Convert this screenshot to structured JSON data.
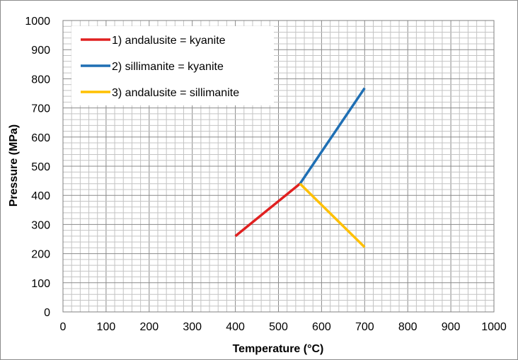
{
  "chart_data": {
    "type": "line",
    "title": "",
    "xlabel": "Temperature (°C)",
    "ylabel": "Pressure (MPa)",
    "xlim": [
      0,
      1000
    ],
    "ylim": [
      0,
      1000
    ],
    "x_major_step": 100,
    "y_major_step": 100,
    "x_minor_step": 20,
    "y_minor_step": 20,
    "grid": true,
    "legend_position": "top-left",
    "series": [
      {
        "name": "1)  andalusite = kyanite",
        "color": "#e02020",
        "points": [
          [
            400,
            260
          ],
          [
            550,
            440
          ]
        ]
      },
      {
        "name": "2)  sillimanite = kyanite",
        "color": "#1f6fb4",
        "points": [
          [
            550,
            440
          ],
          [
            700,
            768
          ]
        ]
      },
      {
        "name": "3)  andalusite = sillimanite",
        "color": "#ffc000",
        "points": [
          [
            550,
            440
          ],
          [
            700,
            222
          ]
        ]
      }
    ]
  }
}
